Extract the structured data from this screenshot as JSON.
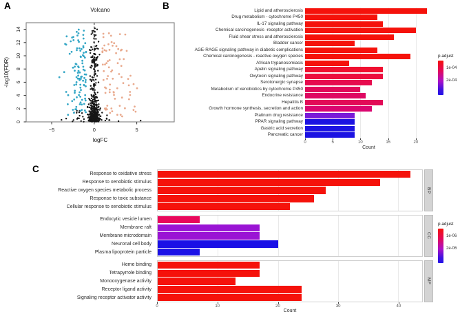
{
  "panels": {
    "a_letter": "A",
    "b_letter": "B",
    "c_letter": "C"
  },
  "colors": {
    "down_points": "#35a7c6",
    "up_points": "#e9aa8e",
    "ns_points": "#161616",
    "bright_red": "#f5120b",
    "purple": "#9a14d4",
    "blue": "#1c12e2",
    "gradient_stops": [
      "#f5120b",
      "#e2085c",
      "#a911c9",
      "#3c11df",
      "#2313e8"
    ],
    "strip_bg": "#d4d4d4"
  },
  "chart_data": [
    {
      "id": "volcano",
      "type": "scatter",
      "title": "Volcano",
      "xlabel": "logFC",
      "ylabel": "-log10(FDR)",
      "xlim": [
        -8,
        9.4
      ],
      "ylim": [
        0,
        15
      ],
      "xticks": [
        -5,
        0,
        5
      ],
      "yticks": [
        0,
        2,
        4,
        6,
        8,
        10,
        12,
        14
      ],
      "vline_x": 0,
      "series": [
        {
          "name": "not-significant-dense",
          "color": "#161616",
          "r": 1.2,
          "n": 240,
          "x": {
            "type": "normal",
            "mean": 0,
            "sd": 0.32,
            "min": -0.95,
            "max": 0.95
          },
          "y": {
            "type": "halfnormal",
            "scale": 1.3,
            "min": 0,
            "max": 3.2
          }
        },
        {
          "name": "not-significant-spine",
          "color": "#161616",
          "r": 1.2,
          "n": 150,
          "x": {
            "type": "normal",
            "mean": 0,
            "sd": 0.27,
            "min": -0.8,
            "max": 0.8
          },
          "y": {
            "type": "pow",
            "min": 0.1,
            "max": 10,
            "pow": 1.5
          }
        },
        {
          "name": "not-significant-high",
          "color": "#161616",
          "r": 1.2,
          "n": 48,
          "x": {
            "type": "normal",
            "mean": 0,
            "sd": 0.3,
            "min": -0.7,
            "max": 0.7
          },
          "y": {
            "type": "uniform",
            "min": 8,
            "max": 14.3
          }
        },
        {
          "name": "not-significant-left",
          "color": "#161616",
          "r": 1.2,
          "n": 16,
          "x": {
            "type": "uniform",
            "min": -2.6,
            "max": -0.85
          },
          "y": {
            "type": "halfnormal",
            "scale": 0.7,
            "min": 0,
            "max": 1.8
          }
        },
        {
          "name": "not-significant-right",
          "color": "#161616",
          "r": 1.2,
          "n": 7,
          "x": {
            "type": "uniform",
            "min": 0.7,
            "max": 1.9
          },
          "y": {
            "type": "halfnormal",
            "scale": 0.5,
            "min": 0,
            "max": 1.2
          }
        },
        {
          "name": "not-significant-outliers",
          "color": "#161616",
          "r": 1.2,
          "points": [
            [
              -3.85,
              0.3
            ],
            [
              5.45,
              0.2
            ],
            [
              -3.3,
              0.5
            ],
            [
              2.85,
              0.1
            ]
          ]
        },
        {
          "name": "down-regulated",
          "color": "#35a7c6",
          "r": 1.4,
          "n": 104,
          "x": {
            "type": "offneg",
            "base": -0.95,
            "sd": 1.15,
            "min": -5.5
          },
          "y": {
            "type": "uniform",
            "min": 0.9,
            "max": 14.1
          }
        },
        {
          "name": "up-regulated",
          "color": "#e9aa8e",
          "r": 1.4,
          "n": 80,
          "x": {
            "type": "offpos",
            "base": 0.95,
            "sd": 1.6,
            "max": 7.6
          },
          "y": {
            "type": "uniform",
            "min": 0.4,
            "max": 13.8
          }
        }
      ]
    },
    {
      "id": "kegg-enrichment",
      "type": "bar",
      "orientation": "horizontal",
      "xlabel": "Count",
      "xticks": [
        0,
        5,
        10,
        15,
        20
      ],
      "xmax": 23,
      "legend": {
        "title": "p.adjust",
        "labels": [
          "1e-04",
          "2e-04"
        ]
      },
      "categories": [
        "Lipid and atherosclerosis",
        "Drug metabolism - cytochrome P450",
        "IL-17 signaling pathway",
        "Chemical carcinogenesis -receptor activation",
        "Fluid shear stress and atherosclerosis",
        "Bladder cancer",
        "AGE-RAGE signaling pathway in diabetic complications",
        "Chemical carcinogenesis - reactive oxygen species",
        "African trypanosomiasis",
        "Apelin signaling pathway",
        "Oxytocin signaling pathway",
        "Serotonergic synapse",
        "Metabolism of xenobiotics by cytochrome P450",
        "Endocrine resistance",
        "Hepatitis B",
        "Growth hormone synthesis, secretion and action",
        "Platinum drug resistance",
        "PPAR signaling pathway",
        "Gastric acid secretion",
        "Pancreatic cancer"
      ],
      "values": [
        22,
        13,
        14,
        20,
        16,
        9,
        13,
        19,
        8,
        14,
        14,
        12,
        10,
        11,
        14,
        12,
        9,
        9,
        9,
        9
      ],
      "colors": [
        "#f5120b",
        "#f5120b",
        "#f5120b",
        "#f5120b",
        "#f5120b",
        "#f5120b",
        "#f5120b",
        "#f5120b",
        "#f5120b",
        "#f01030",
        "#ec0e3e",
        "#e60b4e",
        "#e10959",
        "#de0862",
        "#e20a57",
        "#da0670",
        "#7a1ad8",
        "#1c12e2",
        "#1c12e2",
        "#1c12e2"
      ]
    },
    {
      "id": "go-enrichment",
      "type": "bar",
      "orientation": "horizontal",
      "xlabel": "Count",
      "xticks": [
        0,
        10,
        20,
        30,
        40
      ],
      "xmax": 44,
      "legend": {
        "title": "p.adjust",
        "labels": [
          "1e-06",
          "2e-06"
        ]
      },
      "facets": [
        {
          "label": "BP",
          "categories": [
            "Response to oxidative stress",
            "Response to xenobiotic stimulus",
            "Reactive oxygen species metabolic process",
            "Response to toxic substance",
            "Cellular response to xenobiotic stimulus"
          ],
          "values": [
            42,
            37,
            28,
            26,
            22
          ],
          "colors": [
            "#f5120b",
            "#f5120b",
            "#f5120b",
            "#f5120b",
            "#f5120b"
          ]
        },
        {
          "label": "CC",
          "categories": [
            "Endocytic vesicle lumen",
            "Membrane raft",
            "Membrane microdomain",
            "Neuronal cell body",
            "Plasma lipoprotein particle"
          ],
          "values": [
            7,
            17,
            17,
            20,
            7
          ],
          "colors": [
            "#e8085b",
            "#9a14d4",
            "#9a14d4",
            "#1a10e6",
            "#1a10e6"
          ]
        },
        {
          "label": "MF",
          "categories": [
            "Heme binding",
            "Tetrapyrrole binding",
            "Monooxygenase activity",
            "Receptor ligand activity",
            "Signaling receptor activator activity"
          ],
          "values": [
            17,
            17,
            13,
            24,
            24
          ],
          "colors": [
            "#f5120b",
            "#f5120b",
            "#f5120b",
            "#f5120b",
            "#f5120b"
          ]
        }
      ]
    }
  ]
}
